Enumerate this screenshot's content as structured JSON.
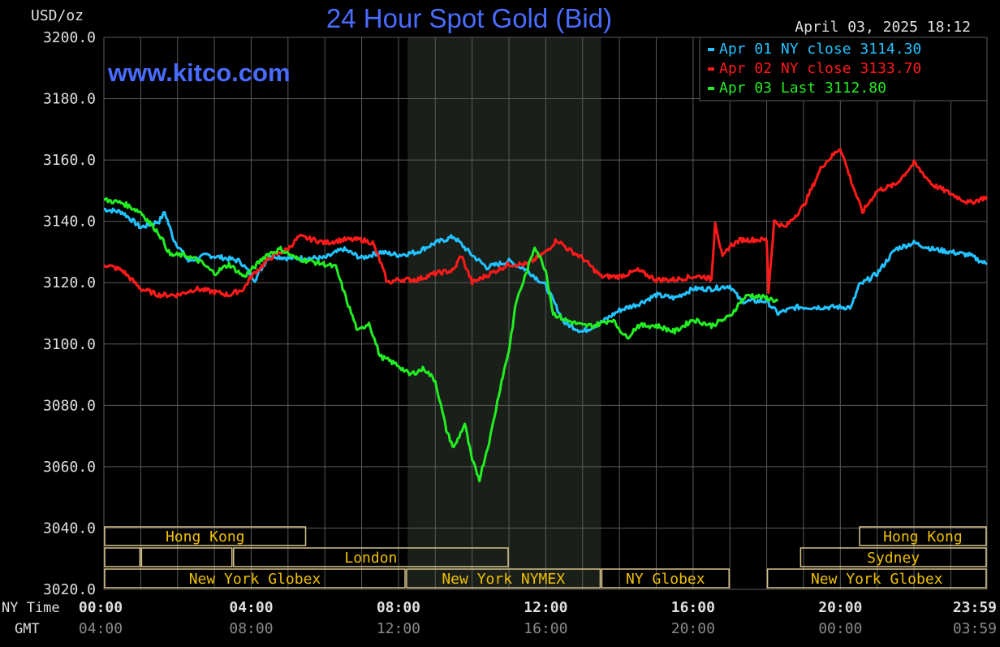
{
  "chart_data": {
    "type": "line",
    "title": "24 Hour Spot Gold (Bid)",
    "ylabel": "USD/oz",
    "watermark": "www.kitco.com",
    "timestamp": "April 03, 2025 18:12",
    "ylim": [
      3020,
      3200
    ],
    "y_ticks": [
      "3200.0",
      "3180.0",
      "3160.0",
      "3140.0",
      "3120.0",
      "3100.0",
      "3080.0",
      "3060.0",
      "3040.0",
      "3020.0"
    ],
    "x_row_label_ny": "NY Time",
    "x_row_label_gmt": "GMT",
    "x_ticks_ny": [
      "00:00",
      "04:00",
      "08:00",
      "12:00",
      "16:00",
      "20:00",
      "23:59"
    ],
    "x_ticks_gmt": [
      "04:00",
      "08:00",
      "12:00",
      "16:00",
      "20:00",
      "00:00",
      "03:59"
    ],
    "x_tick_hours": [
      0,
      4,
      8,
      12,
      16,
      20,
      23.983
    ],
    "grid": true,
    "legend_position": "top-right",
    "shaded_region_hours": [
      8.25,
      13.5
    ],
    "series": [
      {
        "name": "Apr 01 NY close 3114.30",
        "color": "#22c3ff",
        "legend": "Apr 01 NY close 3114.30",
        "points": [
          [
            0,
            3144
          ],
          [
            0.5,
            3143
          ],
          [
            1,
            3138
          ],
          [
            1.5,
            3140
          ],
          [
            1.65,
            3143
          ],
          [
            1.9,
            3134
          ],
          [
            2.3,
            3127
          ],
          [
            2.8,
            3129
          ],
          [
            3.3,
            3128
          ],
          [
            3.7,
            3127
          ],
          [
            4.1,
            3121
          ],
          [
            4.5,
            3129
          ],
          [
            5,
            3128
          ],
          [
            5.5,
            3128
          ],
          [
            6,
            3128
          ],
          [
            6.5,
            3131
          ],
          [
            7,
            3128
          ],
          [
            7.5,
            3130
          ],
          [
            8,
            3129
          ],
          [
            8.5,
            3130
          ],
          [
            9,
            3133
          ],
          [
            9.5,
            3135
          ],
          [
            10,
            3129
          ],
          [
            10.4,
            3125
          ],
          [
            11,
            3127
          ],
          [
            11.5,
            3124
          ],
          [
            12,
            3119
          ],
          [
            12.5,
            3107
          ],
          [
            13,
            3104
          ],
          [
            13.5,
            3107
          ],
          [
            14,
            3111
          ],
          [
            14.5,
            3113
          ],
          [
            15,
            3116
          ],
          [
            15.5,
            3115
          ],
          [
            16,
            3118
          ],
          [
            16.5,
            3118
          ],
          [
            17,
            3119
          ],
          [
            17.3,
            3114
          ],
          [
            18,
            3114
          ],
          [
            18.3,
            3110
          ],
          [
            18.8,
            3112
          ],
          [
            19.4,
            3112
          ],
          [
            20.3,
            3112
          ],
          [
            20.5,
            3119
          ],
          [
            21,
            3123
          ],
          [
            21.5,
            3131
          ],
          [
            22,
            3133
          ],
          [
            22.5,
            3131
          ],
          [
            23,
            3130
          ],
          [
            23.5,
            3129
          ],
          [
            23.98,
            3126
          ]
        ]
      },
      {
        "name": "Apr 02 NY close 3133.70",
        "color": "#ff1a1a",
        "legend": "Apr 02 NY close 3133.70",
        "points": [
          [
            0,
            3126
          ],
          [
            0.5,
            3124
          ],
          [
            1,
            3118
          ],
          [
            1.5,
            3116
          ],
          [
            2,
            3116
          ],
          [
            2.5,
            3118
          ],
          [
            3,
            3117
          ],
          [
            3.4,
            3116
          ],
          [
            3.8,
            3118
          ],
          [
            4,
            3122
          ],
          [
            4.5,
            3128
          ],
          [
            5,
            3131
          ],
          [
            5.3,
            3135
          ],
          [
            5.7,
            3134
          ],
          [
            6,
            3133
          ],
          [
            6.5,
            3134
          ],
          [
            7,
            3134
          ],
          [
            7.3,
            3133
          ],
          [
            7.5,
            3127
          ],
          [
            7.7,
            3120
          ],
          [
            8,
            3121
          ],
          [
            8.5,
            3121
          ],
          [
            9,
            3123
          ],
          [
            9.5,
            3124
          ],
          [
            9.7,
            3129
          ],
          [
            10,
            3120
          ],
          [
            10.5,
            3123
          ],
          [
            11,
            3126
          ],
          [
            11.5,
            3126
          ],
          [
            12,
            3130
          ],
          [
            12.3,
            3134
          ],
          [
            12.6,
            3131
          ],
          [
            13,
            3128
          ],
          [
            13.5,
            3122
          ],
          [
            14,
            3122
          ],
          [
            14.5,
            3124
          ],
          [
            15,
            3121
          ],
          [
            15.5,
            3121
          ],
          [
            16,
            3122
          ],
          [
            16.3,
            3122
          ],
          [
            16.5,
            3121
          ],
          [
            16.6,
            3140
          ],
          [
            16.8,
            3128
          ],
          [
            17,
            3132
          ],
          [
            17.3,
            3134
          ],
          [
            18,
            3134
          ],
          [
            18.05,
            3117
          ],
          [
            18.2,
            3140
          ],
          [
            18.5,
            3138
          ],
          [
            19,
            3145
          ],
          [
            19.5,
            3158
          ],
          [
            20,
            3164
          ],
          [
            20.3,
            3153
          ],
          [
            20.6,
            3143
          ],
          [
            21,
            3150
          ],
          [
            21.5,
            3152
          ],
          [
            22,
            3159
          ],
          [
            22.5,
            3152
          ],
          [
            23,
            3149
          ],
          [
            23.5,
            3146
          ],
          [
            23.98,
            3148
          ]
        ]
      },
      {
        "name": "Apr 03 Last 3112.80",
        "color": "#22ee22",
        "legend": "Apr 03 Last 3112.80",
        "points": [
          [
            0,
            3147
          ],
          [
            0.5,
            3146
          ],
          [
            1,
            3143
          ],
          [
            1.5,
            3136
          ],
          [
            1.8,
            3129
          ],
          [
            2.2,
            3129
          ],
          [
            2.6,
            3127
          ],
          [
            3,
            3123
          ],
          [
            3.4,
            3126
          ],
          [
            3.8,
            3122
          ],
          [
            4,
            3124
          ],
          [
            4.4,
            3129
          ],
          [
            4.8,
            3131
          ],
          [
            5.2,
            3128
          ],
          [
            5.6,
            3127
          ],
          [
            6,
            3126
          ],
          [
            6.3,
            3125
          ],
          [
            6.6,
            3114
          ],
          [
            6.9,
            3104
          ],
          [
            7.2,
            3107
          ],
          [
            7.5,
            3096
          ],
          [
            8,
            3093
          ],
          [
            8.3,
            3090
          ],
          [
            8.7,
            3092
          ],
          [
            9,
            3088
          ],
          [
            9.3,
            3072
          ],
          [
            9.5,
            3066
          ],
          [
            9.8,
            3074
          ],
          [
            10,
            3062
          ],
          [
            10.2,
            3056
          ],
          [
            10.5,
            3070
          ],
          [
            10.8,
            3088
          ],
          [
            11,
            3098
          ],
          [
            11.2,
            3114
          ],
          [
            11.5,
            3124
          ],
          [
            11.7,
            3132
          ],
          [
            12,
            3124
          ],
          [
            12.2,
            3110
          ],
          [
            12.5,
            3108
          ],
          [
            13,
            3106
          ],
          [
            13.3,
            3106
          ],
          [
            13.8,
            3108
          ],
          [
            14.2,
            3102
          ],
          [
            14.5,
            3106
          ],
          [
            15,
            3106
          ],
          [
            15.5,
            3104
          ],
          [
            16,
            3108
          ],
          [
            16.5,
            3106
          ],
          [
            17,
            3109
          ],
          [
            17.3,
            3114
          ],
          [
            17.5,
            3116
          ],
          [
            18,
            3115
          ],
          [
            18.3,
            3114
          ]
        ]
      }
    ],
    "sessions": [
      {
        "label": "Hong Kong",
        "start": 0,
        "end": 5.5,
        "row": 0
      },
      {
        "label": "",
        "start": 0,
        "end": 1,
        "row": 1
      },
      {
        "label": "",
        "start": 1,
        "end": 3.5,
        "row": 1
      },
      {
        "label": "London",
        "start": 3.5,
        "end": 11,
        "row": 1
      },
      {
        "label": "New York Globex",
        "start": 0,
        "end": 8.2,
        "row": 2
      },
      {
        "label": "New York NYMEX",
        "start": 8.2,
        "end": 13.5,
        "row": 2
      },
      {
        "label": "NY Globex",
        "start": 13.5,
        "end": 17.0,
        "row": 2
      },
      {
        "label": "Hong Kong",
        "start": 20.5,
        "end": 23.98,
        "row": 0
      },
      {
        "label": "Sydney",
        "start": 18.9,
        "end": 23.98,
        "row": 1
      },
      {
        "label": "New York Globex",
        "start": 18.0,
        "end": 23.98,
        "row": 2
      }
    ]
  },
  "colors": {
    "background": "#000000",
    "grid": "#5a5a5a",
    "title": "#4a6cff",
    "watermark": "#4a6cff",
    "text": "#e0e0e0",
    "gmt_text": "#8a8a8a",
    "shaded": "#1a1f1a",
    "session_border": "#d8c48a",
    "session_text": "#f0c000"
  }
}
